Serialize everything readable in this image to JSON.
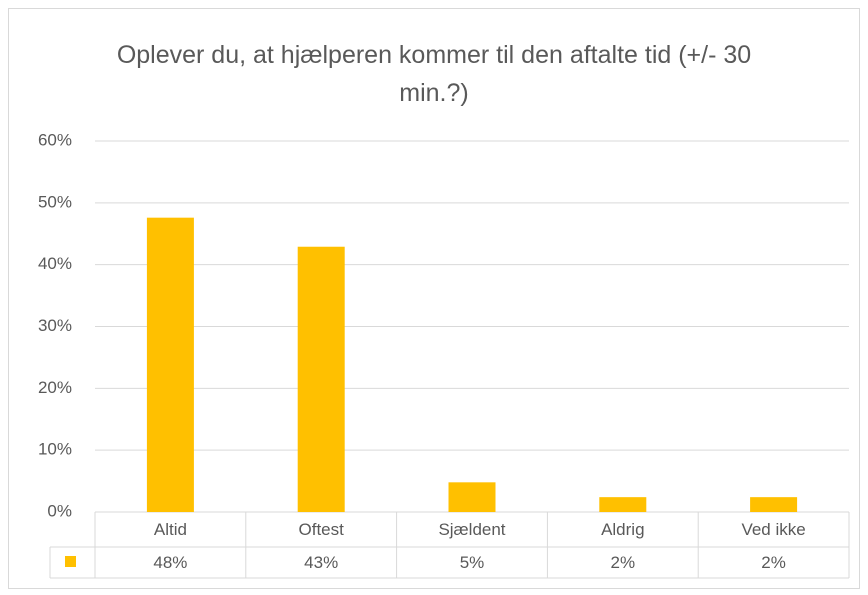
{
  "chart_data": {
    "type": "bar",
    "title": "Oplever du, at hjælperen kommer til den aftalte tid (+/- 30 min.?)",
    "categories": [
      "Altid",
      "Oftest",
      "Sjældent",
      "Aldrig",
      "Ved ikke"
    ],
    "values": [
      47.6,
      42.9,
      4.8,
      2.4,
      2.4
    ],
    "value_labels": [
      "48%",
      "43%",
      "5%",
      "2%",
      "2%"
    ],
    "color": "#ffc000",
    "ylim": [
      0,
      60
    ],
    "yticks": [
      {
        "value": 0,
        "label": "0%"
      },
      {
        "value": 10,
        "label": "10%"
      },
      {
        "value": 20,
        "label": "20%"
      },
      {
        "value": 30,
        "label": "30%"
      },
      {
        "value": 40,
        "label": "40%"
      },
      {
        "value": 50,
        "label": "50%"
      },
      {
        "value": 60,
        "label": "60%"
      }
    ],
    "grid": true
  }
}
